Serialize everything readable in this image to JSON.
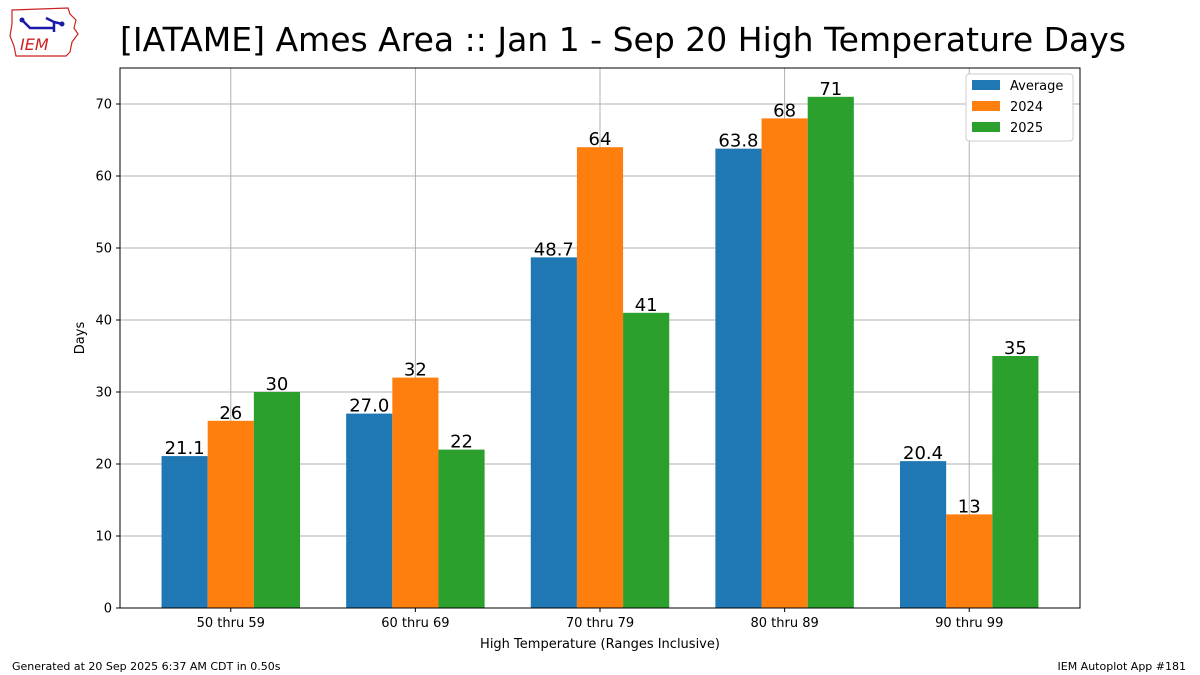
{
  "title": "[IATAME] Ames Area :: Jan 1 - Sep 20 High Temperature Days",
  "logo": {
    "text": "IEM",
    "icon": "iowa-state-outline-logo",
    "color": "#cc2222",
    "accent": "#1a1aa8"
  },
  "footer": {
    "left": "Generated at 20 Sep 2025 6:37 AM CDT in 0.50s",
    "right": "IEM Autoplot App #181"
  },
  "chart_data": {
    "type": "bar",
    "xlabel": "High Temperature (Ranges Inclusive)",
    "ylabel": "Days",
    "ylim": [
      0,
      75
    ],
    "yticks": [
      0,
      10,
      20,
      30,
      40,
      50,
      60,
      70
    ],
    "grid": true,
    "legend_position": "top-right",
    "categories": [
      "50 thru 59",
      "60 thru 69",
      "70 thru 79",
      "80 thru 89",
      "90 thru 99"
    ],
    "series": [
      {
        "name": "Average",
        "color": "#1f77b4",
        "values": [
          21.1,
          27.0,
          48.7,
          63.8,
          20.4
        ],
        "labels": [
          "21.1",
          "27.0",
          "48.7",
          "63.8",
          "20.4"
        ]
      },
      {
        "name": "2024",
        "color": "#ff7f0e",
        "values": [
          26,
          32,
          64,
          68,
          13
        ],
        "labels": [
          "26",
          "32",
          "64",
          "68",
          "13"
        ]
      },
      {
        "name": "2025",
        "color": "#2ca02c",
        "values": [
          30,
          22,
          41,
          71,
          35
        ],
        "labels": [
          "30",
          "22",
          "41",
          "71",
          "35"
        ]
      }
    ]
  }
}
